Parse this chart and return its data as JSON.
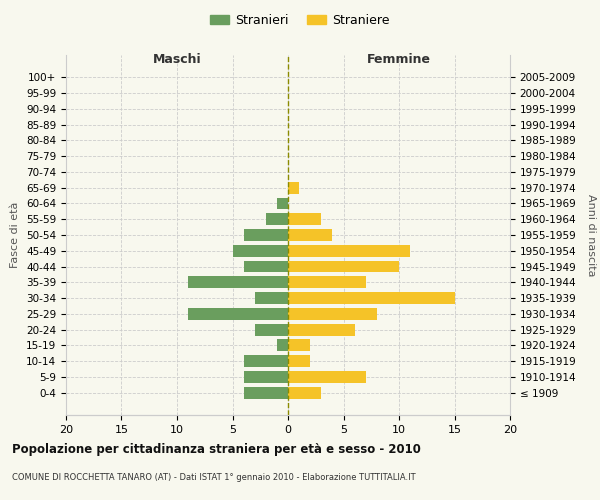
{
  "age_groups": [
    "100+",
    "95-99",
    "90-94",
    "85-89",
    "80-84",
    "75-79",
    "70-74",
    "65-69",
    "60-64",
    "55-59",
    "50-54",
    "45-49",
    "40-44",
    "35-39",
    "30-34",
    "25-29",
    "20-24",
    "15-19",
    "10-14",
    "5-9",
    "0-4"
  ],
  "birth_years": [
    "≤ 1909",
    "1910-1914",
    "1915-1919",
    "1920-1924",
    "1925-1929",
    "1930-1934",
    "1935-1939",
    "1940-1944",
    "1945-1949",
    "1950-1954",
    "1955-1959",
    "1960-1964",
    "1965-1969",
    "1970-1974",
    "1975-1979",
    "1980-1984",
    "1985-1989",
    "1990-1994",
    "1995-1999",
    "2000-2004",
    "2005-2009"
  ],
  "males": [
    0,
    0,
    0,
    0,
    0,
    0,
    0,
    0,
    1,
    2,
    4,
    5,
    4,
    9,
    3,
    9,
    3,
    1,
    4,
    4,
    4
  ],
  "females": [
    0,
    0,
    0,
    0,
    0,
    0,
    0,
    1,
    0,
    3,
    4,
    11,
    10,
    7,
    15,
    8,
    6,
    2,
    2,
    7,
    3
  ],
  "male_color": "#6a9e5e",
  "female_color": "#f5c328",
  "background_color": "#f8f8ee",
  "grid_color": "#cccccc",
  "center_line_color": "#8b8b00",
  "title": "Popolazione per cittadinanza straniera per età e sesso - 2010",
  "subtitle": "COMUNE DI ROCCHETTA TANARO (AT) - Dati ISTAT 1° gennaio 2010 - Elaborazione TUTTITALIA.IT",
  "left_label": "Maschi",
  "right_label": "Femmine",
  "left_axis_label": "Fasce di età",
  "right_axis_label": "Anni di nascita",
  "legend_males": "Stranieri",
  "legend_females": "Straniere",
  "xlim": 20
}
